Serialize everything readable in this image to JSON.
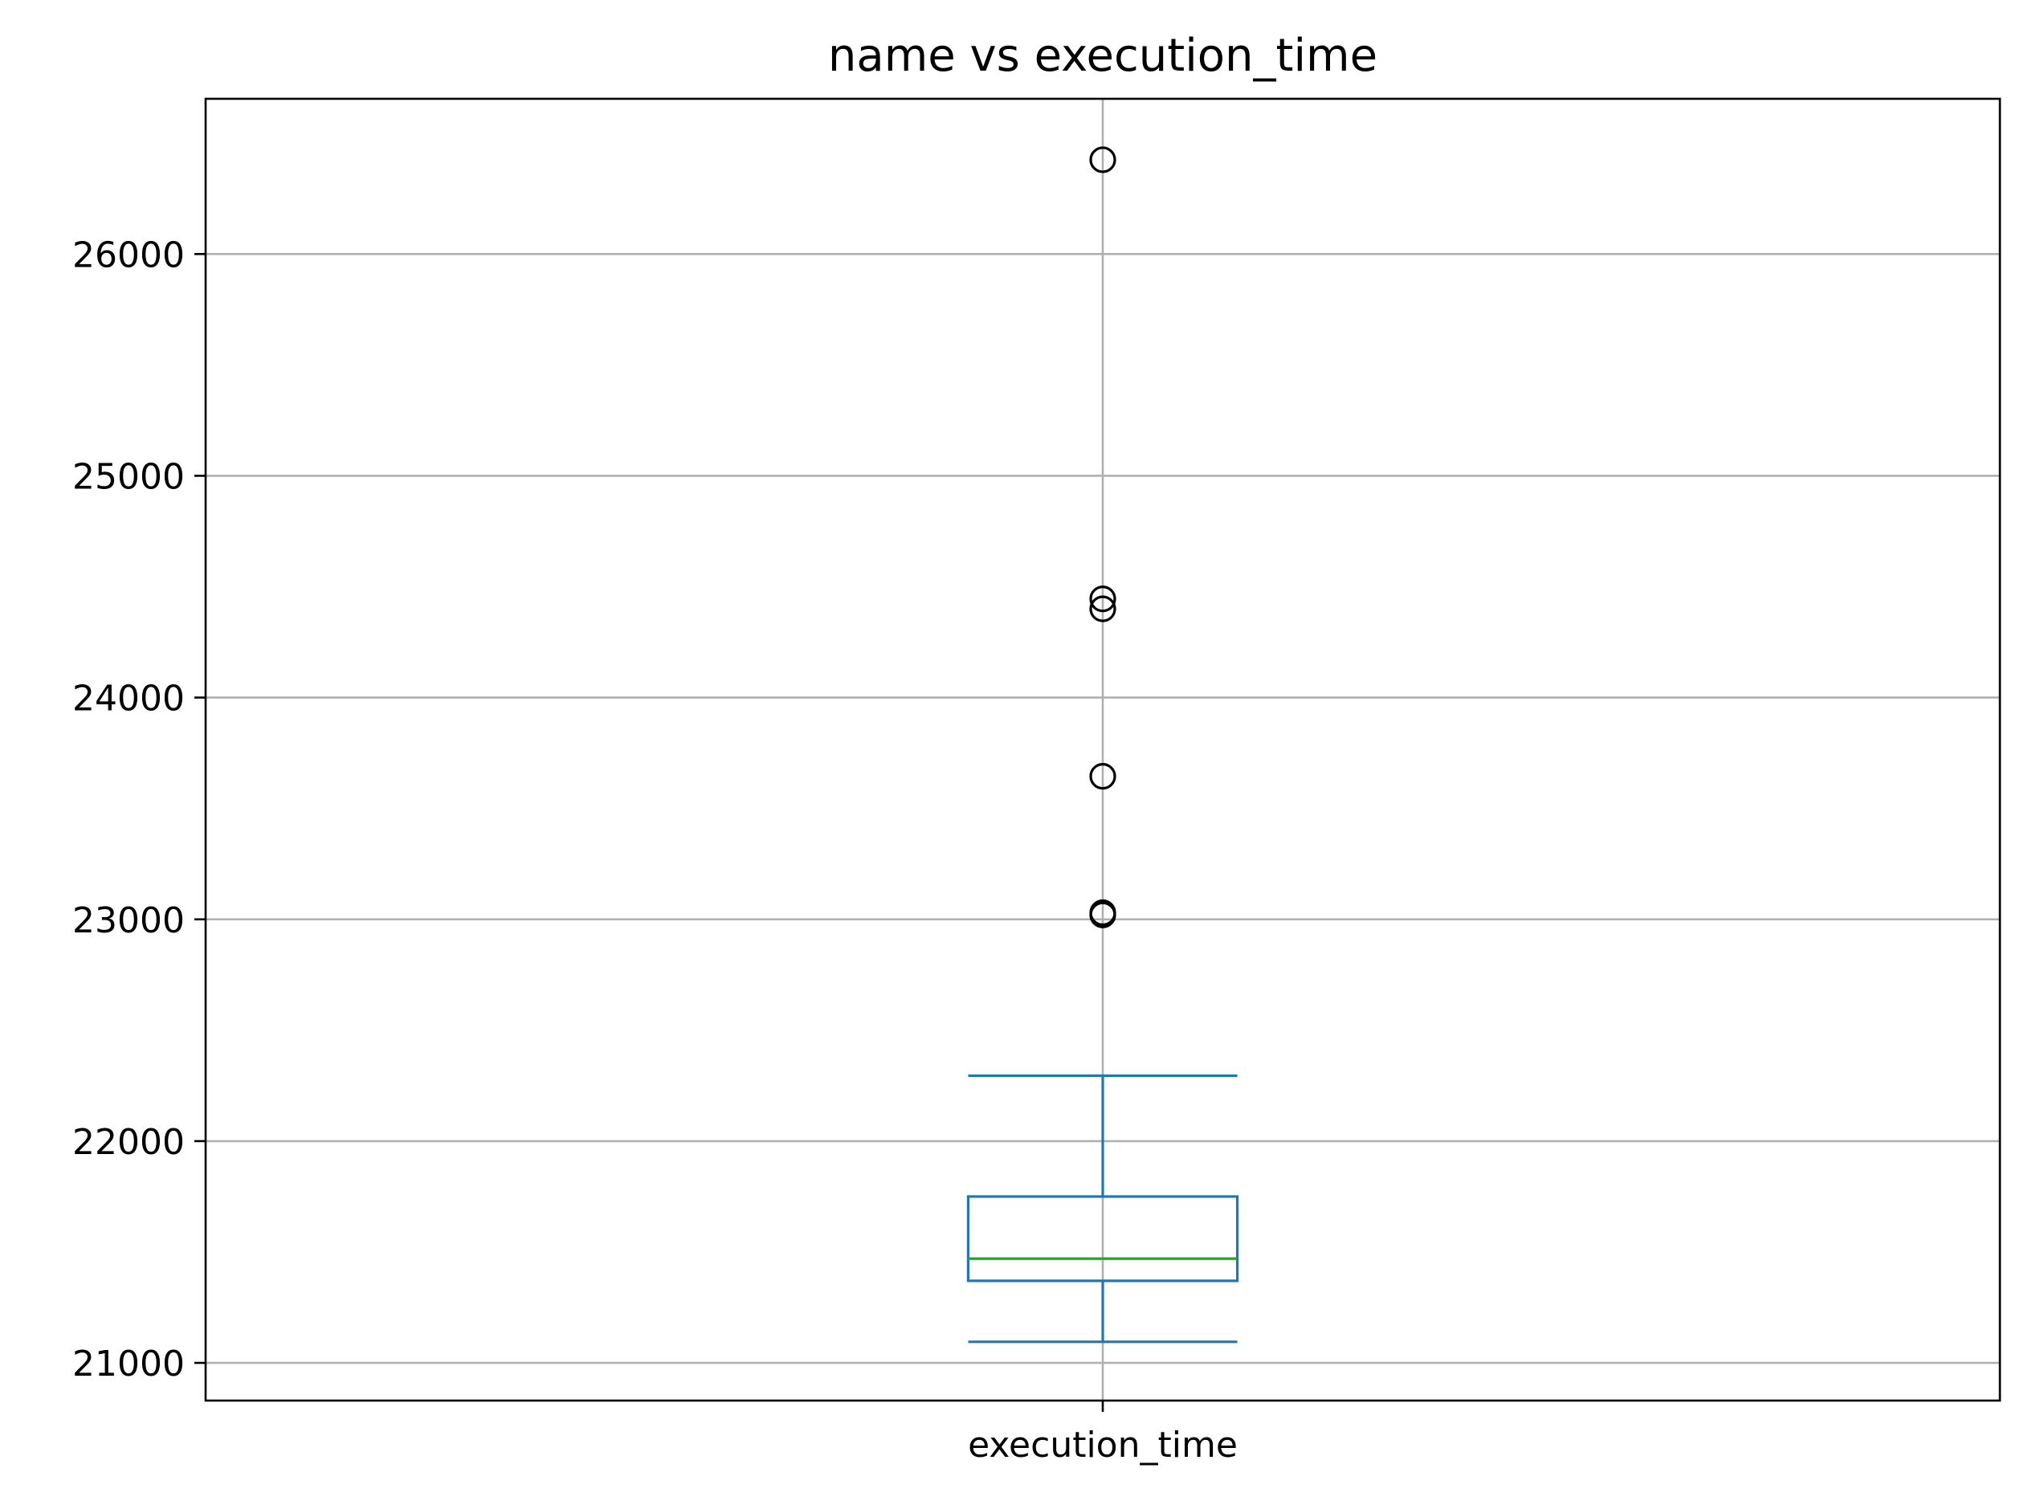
{
  "chart_data": {
    "type": "box",
    "title": "name vs execution_time",
    "xlabel": "",
    "ylabel": "",
    "categories": [
      "execution_time"
    ],
    "ylim": [
      20830,
      26700
    ],
    "yticks": [
      21000,
      22000,
      23000,
      24000,
      25000,
      26000
    ],
    "grid": true,
    "boxes": [
      {
        "category": "execution_time",
        "whisker_low": 21095,
        "q1": 21370,
        "median": 21470,
        "q3": 21750,
        "whisker_high": 22295,
        "outliers": [
          23020,
          23030,
          23645,
          24400,
          24445,
          26425
        ]
      }
    ]
  },
  "colors": {
    "box": "#1f77b4",
    "median": "#2ca02c",
    "grid": "#b0b0b0",
    "outlier": "#000000",
    "axes": "#000000",
    "background": "#ffffff"
  }
}
